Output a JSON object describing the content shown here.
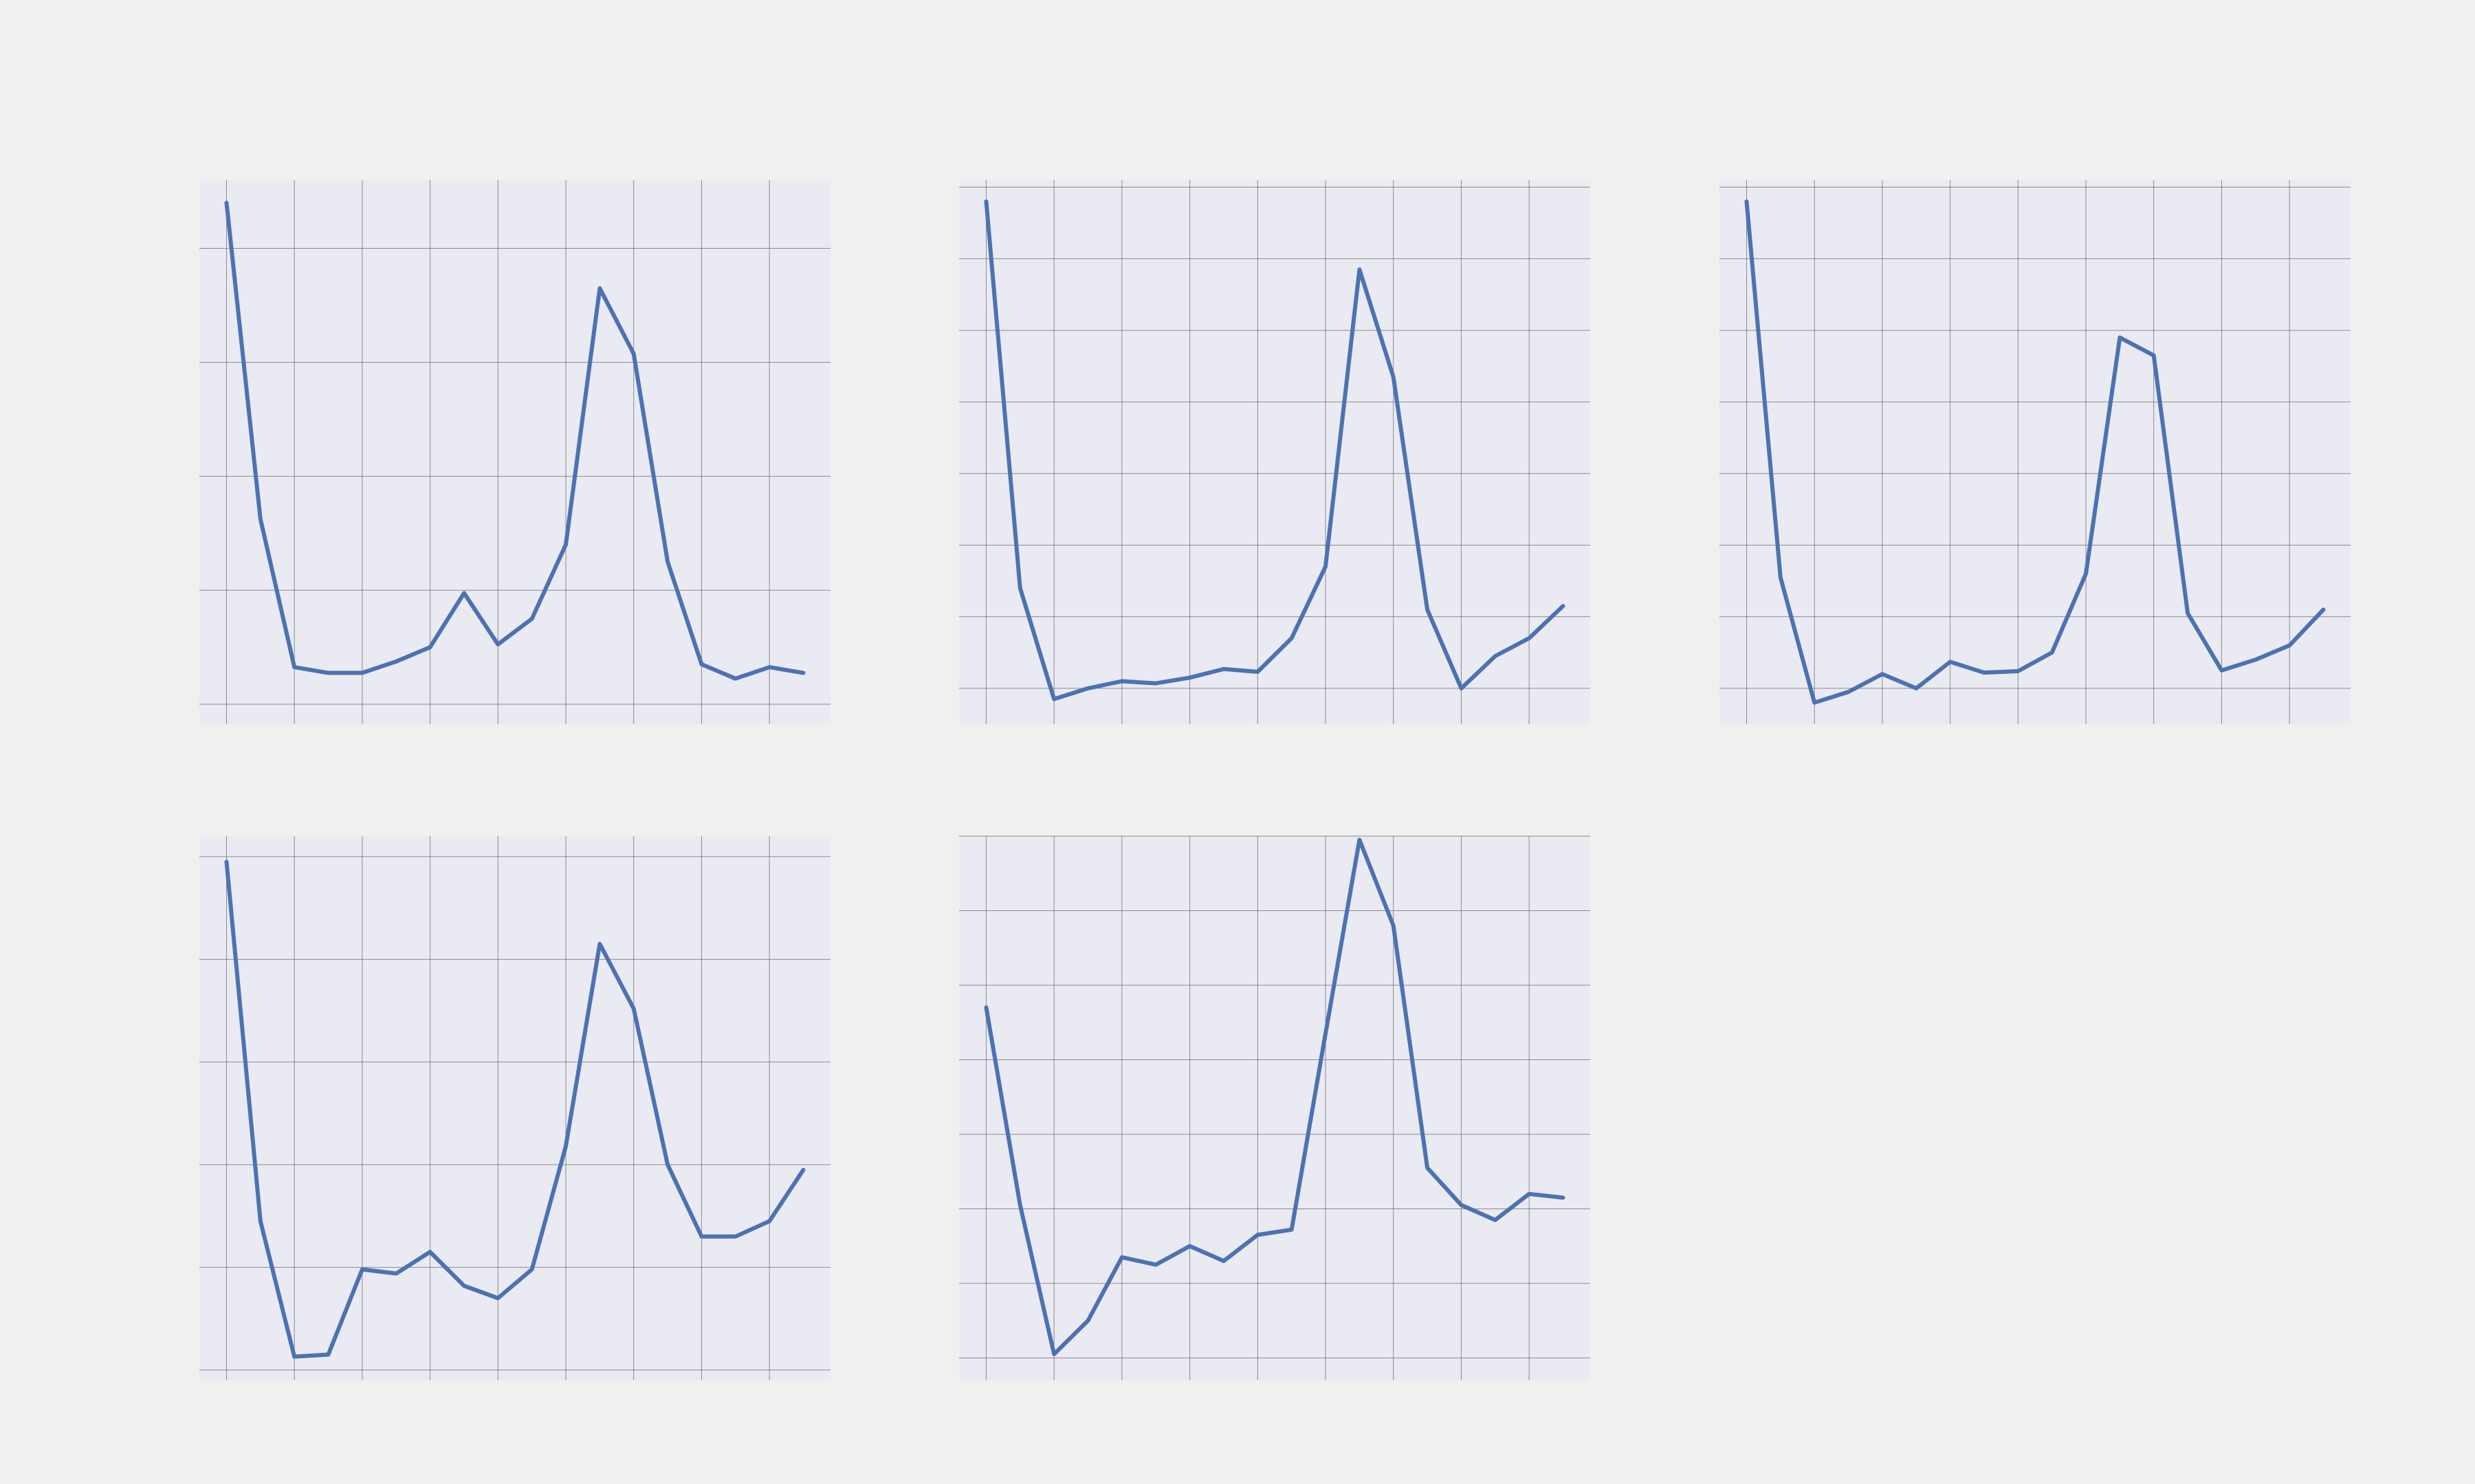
{
  "figure": {
    "background": "#f0f0f0",
    "panel_background": "#eaeaf2",
    "grid_color": "#6b6b6b",
    "line_color": "#4c72b0"
  },
  "chart_data": [
    {
      "type": "line",
      "xlim": [
        -0.8,
        17.8
      ],
      "ylim": [
        -0.7,
        18.4
      ],
      "x": [
        0,
        1,
        2,
        3,
        4,
        5,
        6,
        7,
        8,
        9,
        10,
        11,
        12,
        13,
        14,
        15,
        16,
        17
      ],
      "xticks": [
        0,
        2,
        4,
        6,
        8,
        10,
        12,
        14,
        16
      ],
      "yticks": [
        0,
        4,
        8,
        12,
        16
      ],
      "grid": true,
      "series": [
        {
          "values": [
            17.6,
            6.5,
            1.3,
            1.1,
            1.1,
            1.5,
            2.0,
            3.9,
            2.1,
            3.0,
            5.6,
            14.6,
            12.3,
            5.0,
            1.4,
            0.9,
            1.3,
            1.1
          ]
        }
      ]
    },
    {
      "type": "line",
      "xlim": [
        -0.8,
        17.8
      ],
      "ylim": [
        -0.5,
        7.1
      ],
      "x": [
        0,
        1,
        2,
        3,
        4,
        5,
        6,
        7,
        8,
        9,
        10,
        11,
        12,
        13,
        14,
        15,
        16,
        17
      ],
      "xticks": [
        0,
        2,
        4,
        6,
        8,
        10,
        12,
        14,
        16
      ],
      "yticks": [
        0,
        1,
        2,
        3,
        4,
        5,
        6,
        7
      ],
      "grid": true,
      "series": [
        {
          "values": [
            6.8,
            1.4,
            -0.15,
            0.0,
            0.1,
            0.07,
            0.15,
            0.27,
            0.23,
            0.7,
            1.7,
            5.85,
            4.35,
            1.1,
            0.0,
            0.45,
            0.7,
            1.15
          ]
        }
      ]
    },
    {
      "type": "line",
      "xlim": [
        -0.8,
        17.8
      ],
      "ylim": [
        -0.5,
        7.1
      ],
      "x": [
        0,
        1,
        2,
        3,
        4,
        5,
        6,
        7,
        8,
        9,
        10,
        11,
        12,
        13,
        14,
        15,
        16,
        17
      ],
      "xticks": [
        0,
        2,
        4,
        6,
        8,
        10,
        12,
        14,
        16
      ],
      "yticks": [
        0,
        1,
        2,
        3,
        4,
        5,
        6,
        7
      ],
      "grid": true,
      "series": [
        {
          "values": [
            6.8,
            1.55,
            -0.2,
            -0.05,
            0.2,
            0.0,
            0.37,
            0.22,
            0.24,
            0.5,
            1.6,
            4.9,
            4.65,
            1.05,
            0.25,
            0.4,
            0.6,
            1.1
          ]
        }
      ]
    },
    {
      "type": "line",
      "xlim": [
        -0.8,
        17.8
      ],
      "ylim": [
        -0.1,
        5.2
      ],
      "x": [
        0,
        1,
        2,
        3,
        4,
        5,
        6,
        7,
        8,
        9,
        10,
        11,
        12,
        13,
        14,
        15,
        16,
        17
      ],
      "xticks": [
        0,
        2,
        4,
        6,
        8,
        10,
        12,
        14,
        16
      ],
      "yticks": [
        0,
        1,
        2,
        3,
        4,
        5
      ],
      "grid": true,
      "series": [
        {
          "values": [
            4.95,
            1.45,
            0.13,
            0.15,
            0.98,
            0.94,
            1.15,
            0.82,
            0.7,
            0.98,
            2.18,
            4.15,
            3.52,
            2.0,
            1.3,
            1.3,
            1.45,
            1.95
          ]
        }
      ]
    },
    {
      "type": "line",
      "xlim": [
        -0.8,
        17.8
      ],
      "ylim": [
        -0.3,
        7.0
      ],
      "x": [
        0,
        1,
        2,
        3,
        4,
        5,
        6,
        7,
        8,
        9,
        10,
        11,
        12,
        13,
        14,
        15,
        16,
        17
      ],
      "xticks": [
        0,
        2,
        4,
        6,
        8,
        10,
        12,
        14,
        16
      ],
      "yticks": [
        0,
        1,
        2,
        3,
        4,
        5,
        6,
        7
      ],
      "grid": true,
      "series": [
        {
          "values": [
            4.7,
            2.05,
            0.05,
            0.5,
            1.35,
            1.25,
            1.5,
            1.3,
            1.65,
            1.72,
            4.35,
            6.95,
            5.8,
            2.55,
            2.05,
            1.85,
            2.2,
            2.15
          ]
        }
      ]
    }
  ]
}
